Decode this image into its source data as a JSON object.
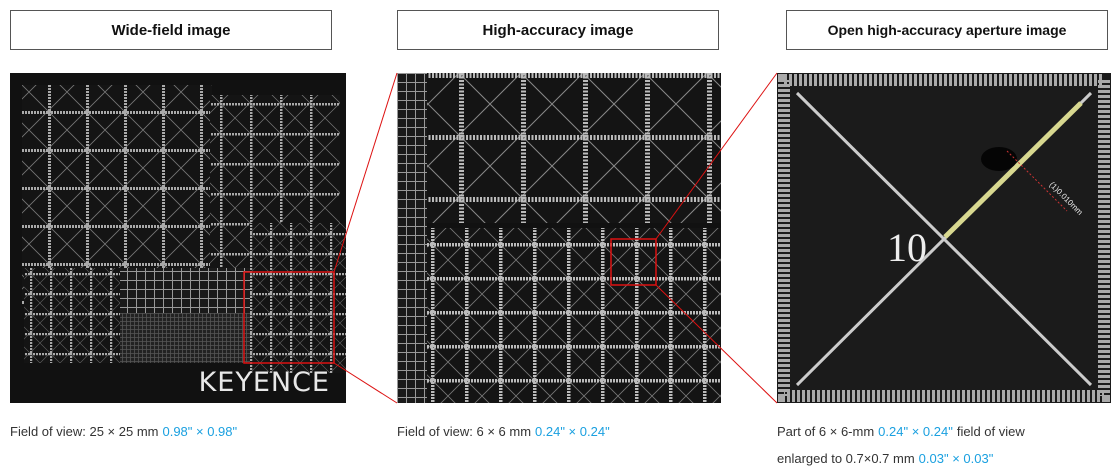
{
  "panels": [
    {
      "title": "Wide-field image",
      "image_text": "KEYENCE",
      "caption": [
        [
          {
            "text": "Field of view: 25 × 25 mm"
          },
          {
            "text": "0.98\" × 0.98\"",
            "highlight": true
          }
        ]
      ]
    },
    {
      "title": "High-accuracy image",
      "caption": [
        [
          {
            "text": "Field of view: 6 × 6 mm"
          },
          {
            "text": "0.24\" × 0.24\"",
            "highlight": true
          }
        ]
      ]
    },
    {
      "title": "Open high-accuracy aperture image",
      "image_text": "10",
      "measurement": "(1)0.010mm",
      "caption": [
        [
          {
            "text": "Part of 6 × 6-mm"
          },
          {
            "text": "0.24\" × 0.24\"",
            "highlight": true
          },
          {
            "text": "field of view"
          }
        ],
        [
          {
            "text": "enlarged to 0.7×0.7 mm"
          },
          {
            "text": "0.03\" × 0.03\"",
            "highlight": true
          }
        ]
      ]
    }
  ]
}
